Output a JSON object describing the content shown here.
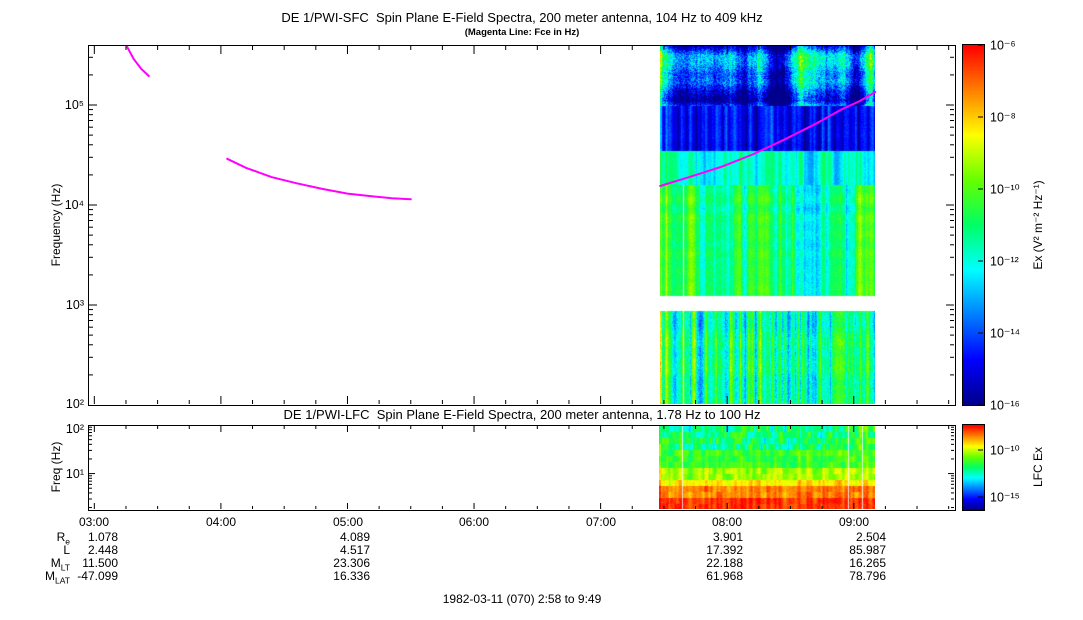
{
  "figure": {
    "footer": "1982-03-11 (070) 2:58 to 9:49",
    "background": "#ffffff",
    "magenta": "#ff00ff"
  },
  "xaxis": {
    "tick_labels": [
      "03:00",
      "04:00",
      "05:00",
      "06:00",
      "07:00",
      "08:00",
      "09:00"
    ],
    "time_span": "2:58 to 9:49"
  },
  "colormap": [
    "#00008c",
    "#0000ff",
    "#0080ff",
    "#00ffff",
    "#00ff66",
    "#66ff00",
    "#ffff00",
    "#ff8000",
    "#ff0000"
  ],
  "ephemeris": {
    "rows": [
      {
        "label": "R",
        "sub": "e",
        "values": [
          "1.078",
          "4.089",
          "3.901",
          "2.504"
        ]
      },
      {
        "label": "L",
        "sub": "",
        "values": [
          "2.448",
          "4.517",
          "17.392",
          "85.987"
        ]
      },
      {
        "label": "M",
        "sub": "LT",
        "values": [
          "11.500",
          "23.306",
          "22.188",
          "16.265"
        ]
      },
      {
        "label": "M",
        "sub": "LAT",
        "values": [
          "-47.099",
          "16.336",
          "61.968",
          "78.796"
        ]
      }
    ]
  },
  "chart_data": [
    {
      "id": "sfc-spectrogram",
      "type": "heatmap",
      "title": "DE 1/PWI-SFC  Spin Plane E-Field Spectra, 200 meter antenna, 104 Hz to 409 kHz",
      "subtitle": "(Magenta Line: Fce in Hz)",
      "ylabel": "Frequency (Hz)",
      "yscale": "log",
      "ytick_labels": [
        "10⁵",
        "10⁴",
        "10³",
        "10²"
      ],
      "y_freq_hz_range": [
        100,
        398000
      ],
      "x_hours_range": [
        2.95,
        9.8
      ],
      "x_tick_hours": [
        3,
        4,
        5,
        6,
        7,
        8,
        9
      ],
      "data_x_hours": [
        7.47,
        9.17
      ],
      "colorbar": {
        "label": "Ex (V² m⁻² Hz⁻¹)",
        "tick_labels": [
          "10⁻⁶",
          "10⁻⁸",
          "10⁻¹⁰",
          "10⁻¹²",
          "10⁻¹⁴",
          "10⁻¹⁶"
        ],
        "value_range_exp": [
          -16,
          -6
        ]
      },
      "seed": 42,
      "gap_col_fmax_hz": 16000,
      "gap_cols": [
        0.105
      ],
      "bands": [
        {
          "f_hz": [
            100000,
            398000
          ],
          "base": 0.2,
          "amp": 0.4,
          "wave": 14,
          "rowamp": 1.0,
          "x_mod": [
            [
              0.42,
              0.58,
              -0.12
            ]
          ],
          "note": "patchy AKR emission, green-yellow blobs on dark blue"
        },
        {
          "f_hz": [
            35000,
            100000
          ],
          "base": 0.13,
          "amp": 0.11,
          "wave": 3,
          "rowamp": 0.3,
          "note": "dark blue with faint cyan vertical streaks"
        },
        {
          "f_hz": [
            16000,
            35000
          ],
          "base": 0.41,
          "amp": 0.1,
          "wave": 5,
          "rowamp": 0.3,
          "note": "bright cyan continuum band"
        },
        {
          "f_hz": [
            1200,
            16000
          ],
          "base": 0.5,
          "amp": 0.15,
          "wave": 6,
          "rowamp": 0.5,
          "x_mod": [
            [
              0.6,
              0.88,
              -0.07
            ],
            [
              0.92,
              1,
              0.1
            ]
          ],
          "note": "green hiss/chorus"
        },
        {
          "f_hz": [
            850,
            1200
          ],
          "base": -1,
          "amp": 0,
          "wave": 3,
          "note": "no data (white gap)"
        },
        {
          "f_hz": [
            100,
            850
          ],
          "base": 0.45,
          "amp": 0.22,
          "wave": 2.5,
          "rowamp": 0.4,
          "x_mod": [
            [
              0.9,
              1,
              0.1
            ]
          ],
          "note": "green-cyan vertical streaks"
        }
      ],
      "fce_line_hz": {
        "color": "#ff00ff",
        "segments": [
          [
            [
              3.26,
              380000
            ],
            [
              3.31,
              290000
            ],
            [
              3.37,
              230000
            ],
            [
              3.43,
              195000
            ]
          ],
          [
            [
              4.05,
              29000
            ],
            [
              4.2,
              23500
            ],
            [
              4.4,
              19000
            ],
            [
              4.6,
              16500
            ],
            [
              4.8,
              14500
            ],
            [
              5.0,
              13000
            ],
            [
              5.2,
              12200
            ],
            [
              5.35,
              11700
            ],
            [
              5.5,
              11400
            ]
          ],
          [
            [
              7.47,
              15500
            ],
            [
              7.7,
              19000
            ],
            [
              7.95,
              24000
            ],
            [
              8.2,
              32000
            ],
            [
              8.45,
              45000
            ],
            [
              8.7,
              65000
            ],
            [
              8.9,
              90000
            ],
            [
              9.05,
              110000
            ],
            [
              9.17,
              135000
            ]
          ]
        ]
      }
    },
    {
      "id": "lfc-spectrogram",
      "type": "heatmap",
      "title": "DE 1/PWI-LFC  Spin Plane E-Field Spectra, 200 meter antenna, 1.78 Hz to 100 Hz",
      "ylabel": "Freq (Hz)",
      "yscale": "log",
      "ytick_labels": [
        "10²",
        "10¹"
      ],
      "y_freq_hz_range": [
        1.78,
        100
      ],
      "data_x_hours": [
        7.47,
        9.17
      ],
      "colorbar": {
        "label": "LFC Ex",
        "tick_labels": [
          "10⁻¹⁰",
          "10⁻¹⁵"
        ]
      },
      "seed": 7,
      "channels": 14,
      "gap_col_fmax_hz": 1000,
      "gap_cols": [
        0.105,
        0.875,
        0.94
      ],
      "bands": [
        {
          "f_hz": [
            30,
            100
          ],
          "base": 0.48,
          "amp": 0.15,
          "wave": 3,
          "x_mod": [
            [
              0.9,
              1,
              0.08
            ]
          ],
          "note": "green with cyan vertical streaks"
        },
        {
          "f_hz": [
            15,
            30
          ],
          "base": 0.57,
          "amp": 0.08,
          "wave": 4
        },
        {
          "f_hz": [
            8,
            15
          ],
          "base": 0.67,
          "amp": 0.07,
          "wave": 4
        },
        {
          "f_hz": [
            5,
            8
          ],
          "base": 0.77,
          "amp": 0.06,
          "wave": 5
        },
        {
          "f_hz": [
            3,
            5
          ],
          "base": 0.87,
          "amp": 0.05,
          "wave": 5
        },
        {
          "f_hz": [
            1.78,
            3
          ],
          "base": 0.95,
          "amp": 0.04,
          "wave": 6,
          "note": "saturated red bottom channels"
        }
      ]
    }
  ]
}
